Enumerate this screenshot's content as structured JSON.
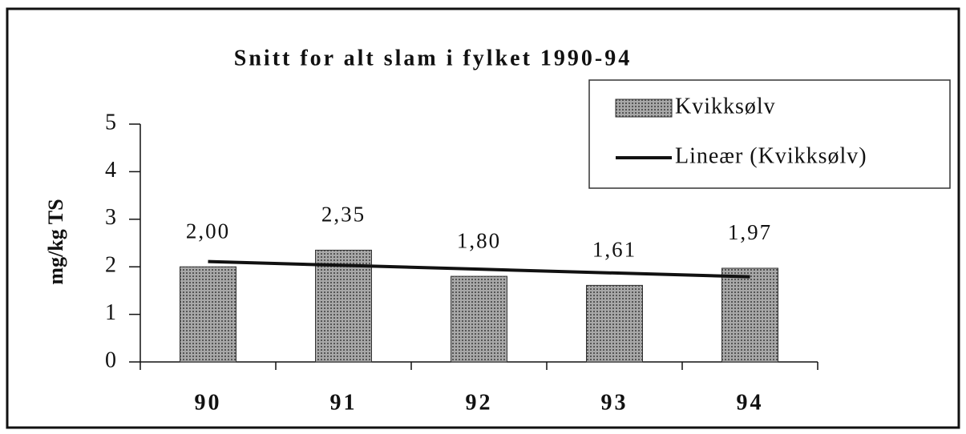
{
  "chart_data": {
    "type": "bar",
    "title": "Snitt for alt slam i fylket 1990-94",
    "y_label": "mg/kg TS",
    "categories": [
      "90",
      "91",
      "92",
      "93",
      "94"
    ],
    "series": [
      {
        "name": "Kvikksølv",
        "color": "#8c8c8c",
        "values": [
          2.0,
          2.35,
          1.8,
          1.61,
          1.97
        ],
        "value_labels": [
          "2,00",
          "2,35",
          "1,80",
          "1,61",
          "1,97"
        ]
      },
      {
        "name": "Lineær (Kvikksølv)",
        "type": "line",
        "color": "#111111",
        "values": [
          2.11,
          2.03,
          1.95,
          1.87,
          1.79
        ]
      }
    ],
    "ylim": [
      0,
      5
    ],
    "yticks": [
      0,
      1,
      2,
      3,
      4,
      5
    ],
    "legend": "upper right"
  }
}
